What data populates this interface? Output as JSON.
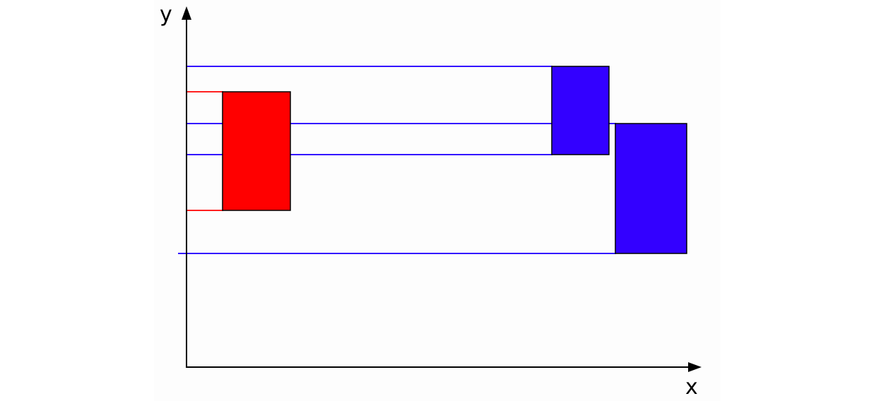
{
  "axes": {
    "x_label": "x",
    "y_label": "y"
  },
  "colors": {
    "red_box": "#ff0000",
    "blue_box": "#3300ff",
    "red_line": "#ff2020",
    "blue_line": "#3311ff",
    "axis": "#000000",
    "outline": "#000000"
  },
  "elements": {
    "red_box": {
      "fill_key": "red_box"
    },
    "blue_box_upper": {
      "fill_key": "blue_box"
    },
    "blue_box_lower": {
      "fill_key": "blue_box"
    }
  }
}
